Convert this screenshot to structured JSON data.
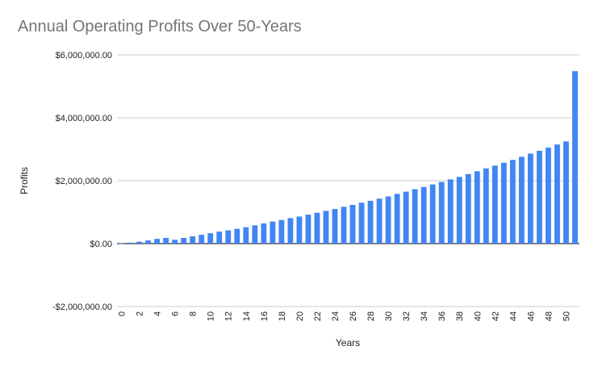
{
  "chart_data": {
    "type": "bar",
    "title": "Annual Operating Profits Over 50-Years",
    "xlabel": "Years",
    "ylabel": "Profits",
    "ylim": [
      -2000000,
      6000000
    ],
    "y_ticks": [
      -2000000,
      0,
      2000000,
      4000000,
      6000000
    ],
    "y_tick_labels": [
      "-$2,000,000.00",
      "$0.00",
      "$2,000,000.00",
      "$4,000,000.00",
      "$6,000,000.00"
    ],
    "x_tick_labels": [
      "0",
      "2",
      "4",
      "6",
      "8",
      "10",
      "12",
      "14",
      "16",
      "18",
      "20",
      "22",
      "24",
      "26",
      "28",
      "30",
      "32",
      "34",
      "36",
      "38",
      "40",
      "42",
      "44",
      "46",
      "48",
      "50"
    ],
    "bar_color": "#4285f4",
    "grid": true,
    "legend": "none",
    "categories": [
      "0",
      "1",
      "2",
      "3",
      "4",
      "5",
      "6",
      "7",
      "8",
      "9",
      "10",
      "11",
      "12",
      "13",
      "14",
      "15",
      "16",
      "17",
      "18",
      "19",
      "20",
      "21",
      "22",
      "23",
      "24",
      "25",
      "26",
      "27",
      "28",
      "29",
      "30",
      "31",
      "32",
      "33",
      "34",
      "35",
      "36",
      "37",
      "38",
      "39",
      "40",
      "41",
      "42",
      "43",
      "44",
      "45",
      "46",
      "47",
      "48",
      "49",
      "50",
      "51"
    ],
    "values": [
      10000,
      30000,
      60000,
      100000,
      150000,
      180000,
      120000,
      180000,
      230000,
      280000,
      330000,
      380000,
      420000,
      470000,
      520000,
      580000,
      640000,
      700000,
      750000,
      810000,
      860000,
      920000,
      980000,
      1040000,
      1100000,
      1170000,
      1230000,
      1300000,
      1360000,
      1430000,
      1500000,
      1580000,
      1650000,
      1730000,
      1800000,
      1880000,
      1960000,
      2040000,
      2120000,
      2210000,
      2300000,
      2390000,
      2480000,
      2570000,
      2660000,
      2760000,
      2860000,
      2950000,
      3050000,
      3150000,
      3250000,
      5480000
    ]
  }
}
